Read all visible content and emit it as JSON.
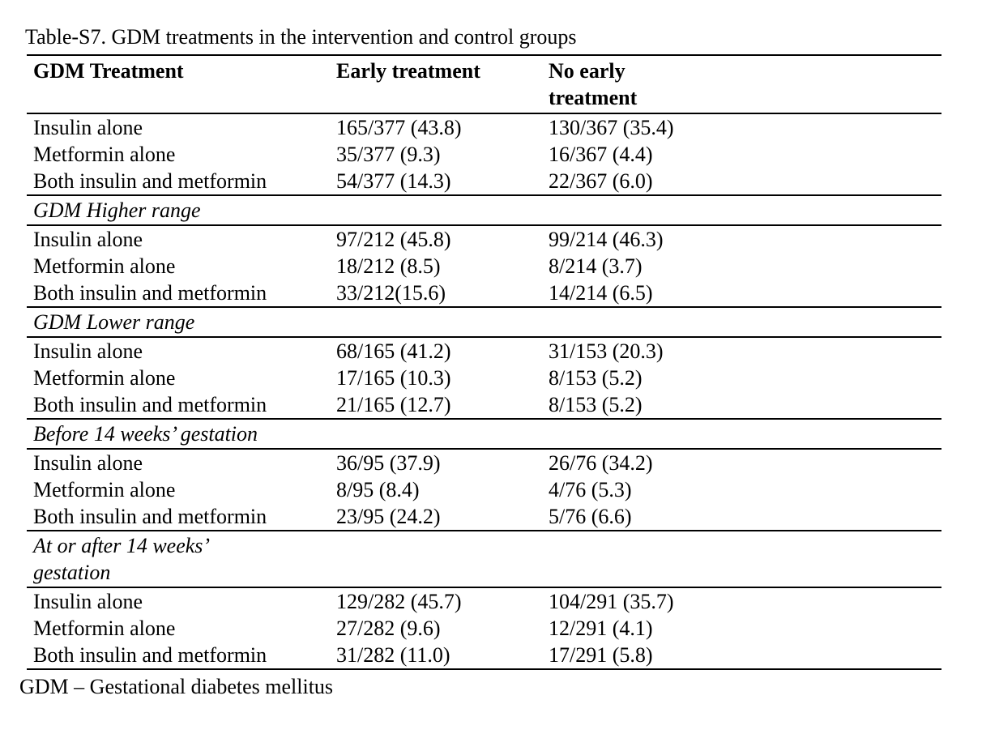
{
  "page": {
    "title": "Table-S7. GDM treatments in the intervention and control groups",
    "footnote": "GDM – Gestational diabetes mellitus"
  },
  "table": {
    "columns": [
      "GDM Treatment",
      "Early treatment",
      "No early\ntreatment"
    ],
    "sections": [
      {
        "heading": "",
        "rows": [
          {
            "treatment": "Insulin alone",
            "early": "165/377 (43.8)",
            "no_early": "130/367 (35.4)"
          },
          {
            "treatment": "Metformin alone",
            "early": "35/377 (9.3)",
            "no_early": "16/367 (4.4)"
          },
          {
            "treatment": "Both insulin and metformin",
            "early": "54/377 (14.3)",
            "no_early": "22/367 (6.0)"
          }
        ]
      },
      {
        "heading": "GDM Higher range",
        "rows": [
          {
            "treatment": "Insulin alone",
            "early": "97/212 (45.8)",
            "no_early": "99/214 (46.3)"
          },
          {
            "treatment": "Metformin alone",
            "early": "18/212 (8.5)",
            "no_early": "8/214 (3.7)"
          },
          {
            "treatment": "Both insulin and metformin",
            "early": "33/212(15.6)",
            "no_early": "14/214 (6.5)"
          }
        ]
      },
      {
        "heading": "GDM Lower range",
        "rows": [
          {
            "treatment": "Insulin alone",
            "early": "68/165 (41.2)",
            "no_early": "31/153 (20.3)"
          },
          {
            "treatment": "Metformin alone",
            "early": "17/165 (10.3)",
            "no_early": "8/153 (5.2)"
          },
          {
            "treatment": "Both insulin and metformin",
            "early": "21/165 (12.7)",
            "no_early": "8/153 (5.2)"
          }
        ]
      },
      {
        "heading": "Before 14 weeks’ gestation",
        "rows": [
          {
            "treatment": "Insulin alone",
            "early": "36/95 (37.9)",
            "no_early": "26/76 (34.2)"
          },
          {
            "treatment": "Metformin alone",
            "early": "8/95 (8.4)",
            "no_early": "4/76 (5.3)"
          },
          {
            "treatment": "Both insulin and metformin",
            "early": "23/95 (24.2)",
            "no_early": "5/76 (6.6)"
          }
        ]
      },
      {
        "heading": "At or after 14 weeks’\ngestation",
        "rows": [
          {
            "treatment": "Insulin alone",
            "early": "129/282 (45.7)",
            "no_early": "104/291 (35.7)"
          },
          {
            "treatment": "Metformin alone",
            "early": "27/282 (9.6)",
            "no_early": "12/291 (4.1)"
          },
          {
            "treatment": "Both insulin and metformin",
            "early": "31/282 (11.0)",
            "no_early": "17/291 (5.8)"
          }
        ]
      }
    ]
  },
  "colors": {
    "text": "#000000",
    "background": "#ffffff",
    "rule": "#000000"
  }
}
